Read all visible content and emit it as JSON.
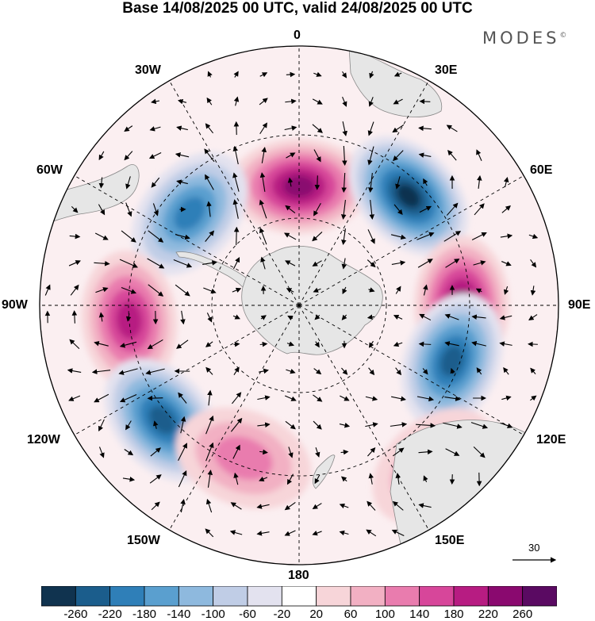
{
  "title": "Base 14/08/2025 00 UTC, valid 24/08/2025 00 UTC",
  "brand": "MODES",
  "brand_mark": "©",
  "longitude_labels": {
    "top": "0",
    "bottom": "180",
    "n30w": "30W",
    "n30e": "30E",
    "n60w": "60W",
    "n60e": "60E",
    "n90w": "90W",
    "n90e": "90E",
    "n120w": "120W",
    "n120e": "120E",
    "n150w": "150W",
    "n150e": "150E"
  },
  "reference_vector": "30",
  "colorbar": {
    "ticks": [
      "-260",
      "-220",
      "-180",
      "-140",
      "-100",
      "-60",
      "-20",
      "20",
      "60",
      "100",
      "140",
      "180",
      "220",
      "260"
    ],
    "colors": [
      "#10334f",
      "#1b5d8c",
      "#2f7fb8",
      "#5a9fcf",
      "#8eb9de",
      "#c0cde6",
      "#e3e2ef",
      "#ffffff",
      "#f7d5d9",
      "#f2b0c3",
      "#e97cae",
      "#d7469a",
      "#b71c82",
      "#8a096f",
      "#5a0a62"
    ]
  },
  "anomaly_centers": [
    {
      "name": "positive-0",
      "lon_deg": 0,
      "value": 220
    },
    {
      "name": "negative-45e",
      "lon_deg": 45,
      "value": -260
    },
    {
      "name": "negative-50w",
      "lon_deg": -50,
      "value": -200
    },
    {
      "name": "positive-90e",
      "lon_deg": 90,
      "value": 220
    },
    {
      "name": "positive-95w",
      "lon_deg": -95,
      "value": 180
    },
    {
      "name": "negative-110e",
      "lon_deg": 110,
      "value": -220
    },
    {
      "name": "negative-130w",
      "lon_deg": -130,
      "value": -220
    },
    {
      "name": "positive-160w",
      "lon_deg": -160,
      "value": 100
    },
    {
      "name": "positive-140e",
      "lon_deg": 140,
      "value": 100
    }
  ]
}
